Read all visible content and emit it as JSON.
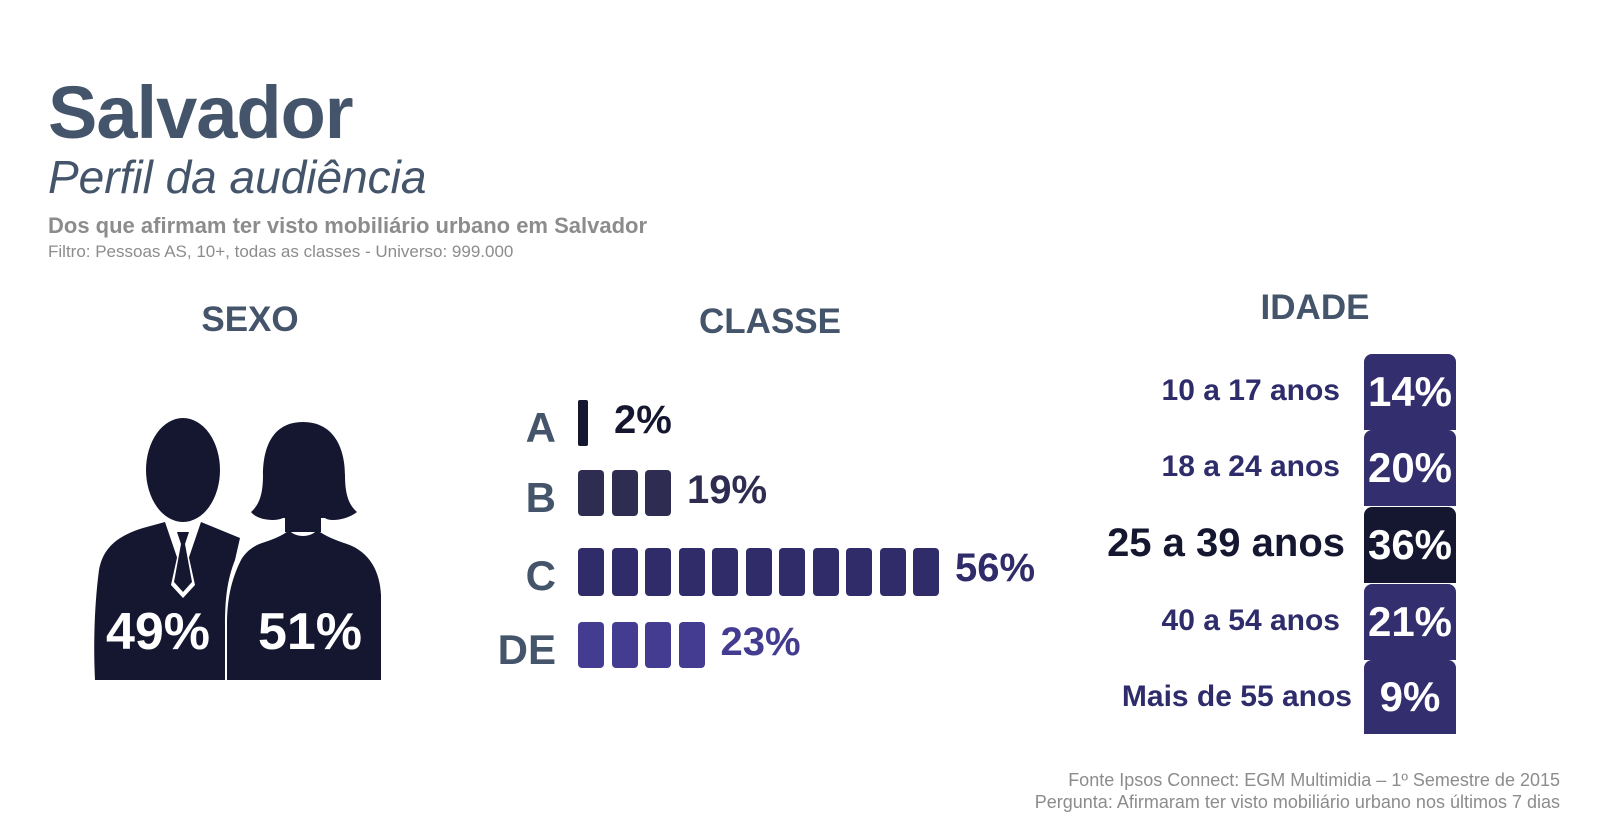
{
  "header": {
    "title": "Salvador",
    "subtitle": "Perfil da audiência",
    "description": "Dos que afirmam ter visto mobiliário urbano em Salvador",
    "filter": "Filtro: Pessoas AS, 10+, todas as classes - Universo: 999.000"
  },
  "sections": {
    "sexo": "SEXO",
    "classe": "CLASSE",
    "idade": "IDADE"
  },
  "icons": {
    "male": "man-silhouette-icon",
    "female": "woman-silhouette-icon"
  },
  "colors": {
    "title": "#44546a",
    "figure": "#151731",
    "class_a": "#151731",
    "class_b": "#2e2c50",
    "class_c": "#302c6a",
    "class_de": "#433c90",
    "age_default": "#332e6e",
    "age_highlight": "#151731"
  },
  "chart_data": [
    {
      "type": "pictogram",
      "title": "SEXO",
      "categories": [
        "man-silhouette-icon",
        "woman-silhouette-icon"
      ],
      "values": [
        49,
        51
      ],
      "labels": [
        "49%",
        "51%"
      ]
    },
    {
      "type": "bar",
      "title": "CLASSE",
      "orientation": "horizontal",
      "categories": [
        "A",
        "B",
        "C",
        "DE"
      ],
      "values": [
        2,
        19,
        56,
        23
      ],
      "labels": [
        "2%",
        "19%",
        "56%",
        "23%"
      ],
      "segments": [
        1,
        3,
        11,
        4
      ]
    },
    {
      "type": "bar",
      "title": "IDADE",
      "categories": [
        "10 a 17 anos",
        "18 a 24 anos",
        "25 a 39 anos",
        "40 a 54 anos",
        "Mais de 55 anos"
      ],
      "values": [
        14,
        20,
        36,
        21,
        9
      ],
      "labels": [
        "14%",
        "20%",
        "36%",
        "21%",
        "9%"
      ],
      "highlight": "25 a 39 anos"
    }
  ],
  "footer": {
    "source": "Fonte Ipsos Connect: EGM Multimidia – 1º Semestre de 2015",
    "question": "Pergunta: Afirmaram ter visto mobiliário urbano nos últimos 7 dias"
  }
}
